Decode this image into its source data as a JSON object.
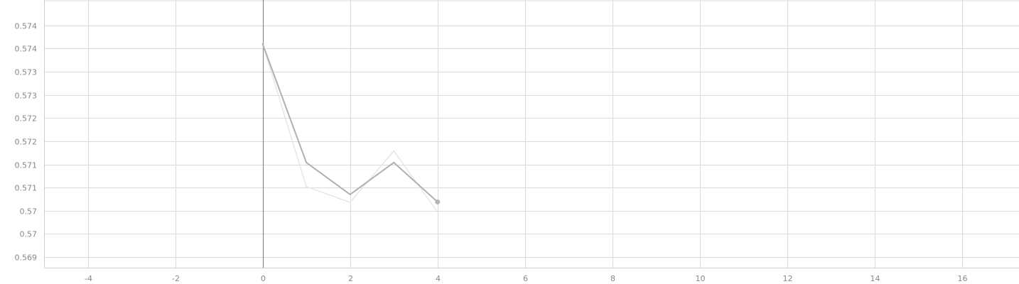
{
  "chart_data": {
    "type": "line",
    "title": "",
    "xlabel": "",
    "ylabel": "",
    "xlim": [
      -5,
      17.3
    ],
    "ylim": [
      0.56877,
      0.57455
    ],
    "grid": true,
    "x_ticks": [
      -4,
      -2,
      0,
      2,
      4,
      6,
      8,
      10,
      12,
      14,
      16
    ],
    "y_ticks": [
      {
        "value": 0.569,
        "label": "0.569"
      },
      {
        "value": 0.5695,
        "label": "0.57"
      },
      {
        "value": 0.57,
        "label": "0.57"
      },
      {
        "value": 0.5705,
        "label": "0.571"
      },
      {
        "value": 0.571,
        "label": "0.571"
      },
      {
        "value": 0.5715,
        "label": "0.572"
      },
      {
        "value": 0.572,
        "label": "0.572"
      },
      {
        "value": 0.5725,
        "label": "0.573"
      },
      {
        "value": 0.573,
        "label": "0.573"
      },
      {
        "value": 0.5735,
        "label": "0.574"
      },
      {
        "value": 0.574,
        "label": "0.574"
      }
    ],
    "series": [
      {
        "role": "raw",
        "color": "#e6e6e6",
        "x": [
          0,
          1,
          2,
          3,
          4
        ],
        "y": [
          0.5736,
          0.57052,
          0.57018,
          0.57129,
          0.56997
        ]
      },
      {
        "role": "smoothed",
        "color": "#b0b0b0",
        "x": [
          0,
          1,
          2,
          3,
          4
        ],
        "y": [
          0.5736,
          0.57104,
          0.57035,
          0.57104,
          0.57019
        ]
      }
    ],
    "marker": {
      "x": 4,
      "y": 0.57019,
      "color": "#b5b5b5"
    }
  }
}
